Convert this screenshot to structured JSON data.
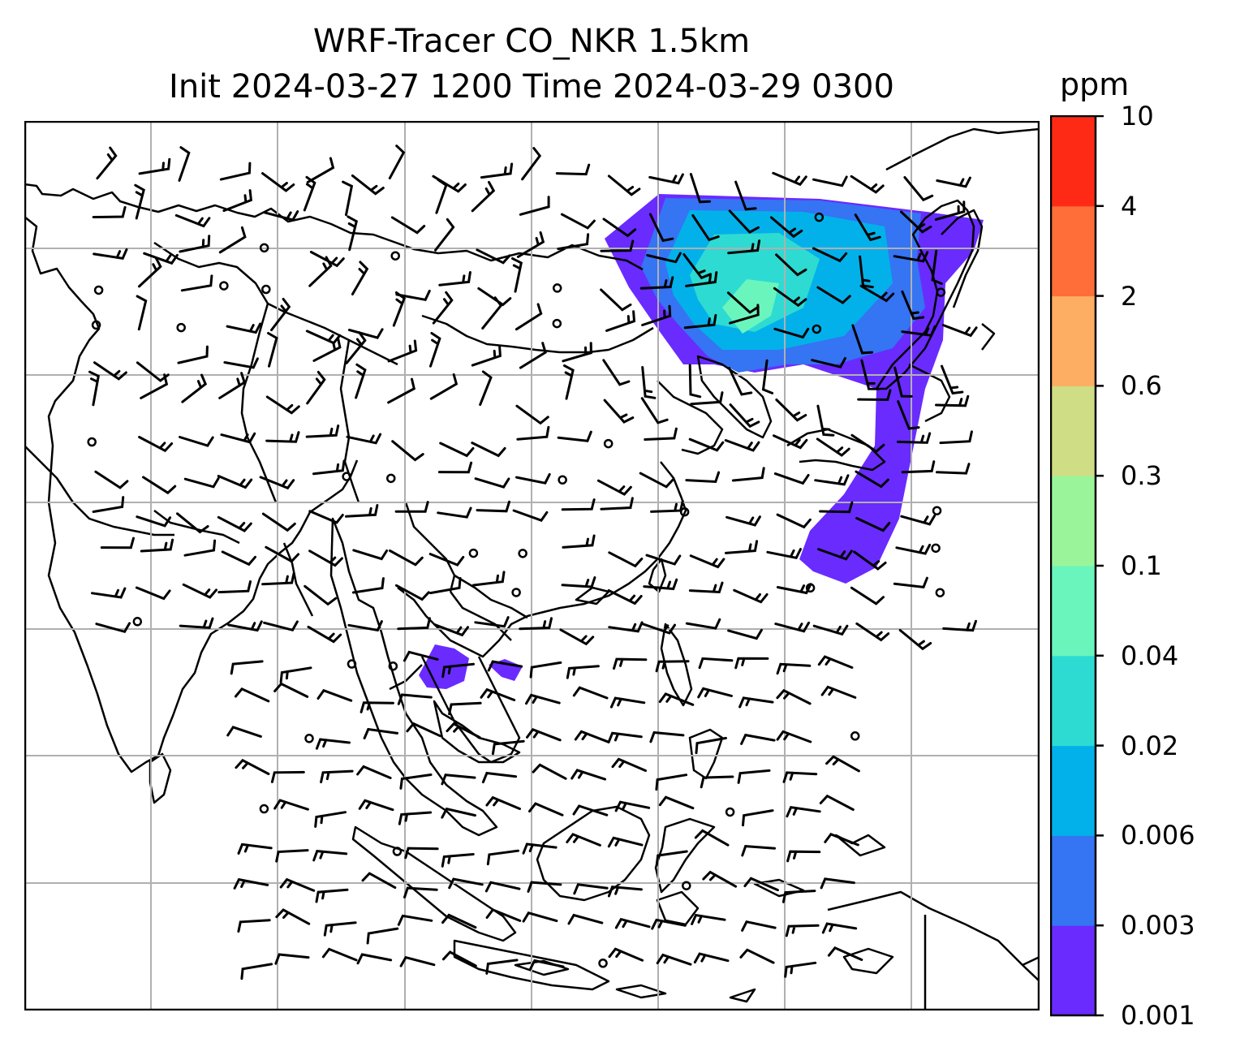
{
  "title": {
    "line1": "WRF-Tracer CO_NKR 1.5km",
    "line2": "Init 2024-03-27 1200 Time 2024-03-29 0300"
  },
  "colorbar": {
    "unit": "ppm",
    "tick_labels": [
      "0.001",
      "0.003",
      "0.006",
      "0.02",
      "0.04",
      "0.1",
      "0.3",
      "0.6",
      "2",
      "4",
      "10"
    ],
    "colors": [
      "#6a2bff",
      "#3574f2",
      "#03b1ea",
      "#2ddbd2",
      "#6af5bd",
      "#9af59a",
      "#cfdd85",
      "#fdae62",
      "#ff6e39",
      "#ff2a16"
    ]
  },
  "map": {
    "features": [
      "coastlines",
      "country-borders",
      "lat-lon-gridlines",
      "wind-barbs",
      "tracer-concentration-shading"
    ],
    "plume_colors": [
      "#6a2bff",
      "#3574f2",
      "#03b1ea",
      "#2ddbd2",
      "#6af5bd"
    ]
  }
}
